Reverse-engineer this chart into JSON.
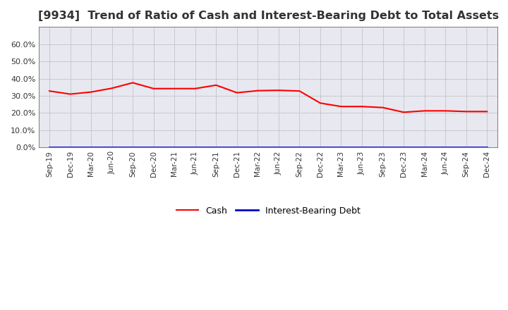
{
  "title": "[9934]  Trend of Ratio of Cash and Interest-Bearing Debt to Total Assets",
  "x_labels": [
    "Sep-19",
    "Dec-19",
    "Mar-20",
    "Jun-20",
    "Sep-20",
    "Dec-20",
    "Mar-21",
    "Jun-21",
    "Sep-21",
    "Dec-21",
    "Mar-22",
    "Jun-22",
    "Sep-22",
    "Dec-22",
    "Mar-23",
    "Jun-23",
    "Sep-23",
    "Dec-23",
    "Mar-24",
    "Jun-24",
    "Sep-24",
    "Dec-24"
  ],
  "cash": [
    0.328,
    0.31,
    0.322,
    0.344,
    0.376,
    0.342,
    0.342,
    0.342,
    0.362,
    0.318,
    0.33,
    0.332,
    0.328,
    0.258,
    0.238,
    0.238,
    0.232,
    0.205,
    0.213,
    0.213,
    0.209,
    0.209
  ],
  "interest_bearing_debt": [
    0.003,
    0.003,
    0.003,
    0.003,
    0.003,
    0.003,
    0.003,
    0.003,
    0.003,
    0.003,
    0.003,
    0.003,
    0.003,
    0.003,
    0.003,
    0.003,
    0.003,
    0.003,
    0.003,
    0.003,
    0.003,
    0.003
  ],
  "cash_color": "#FF0000",
  "debt_color": "#0000CC",
  "background_color": "#FFFFFF",
  "plot_bg_color": "#E8E8F0",
  "grid_color": "#AAAAAA",
  "ylim": [
    0,
    0.7
  ],
  "yticks": [
    0.0,
    0.1,
    0.2,
    0.3,
    0.4,
    0.5,
    0.6
  ],
  "title_fontsize": 11.5,
  "legend_labels": [
    "Cash",
    "Interest-Bearing Debt"
  ]
}
